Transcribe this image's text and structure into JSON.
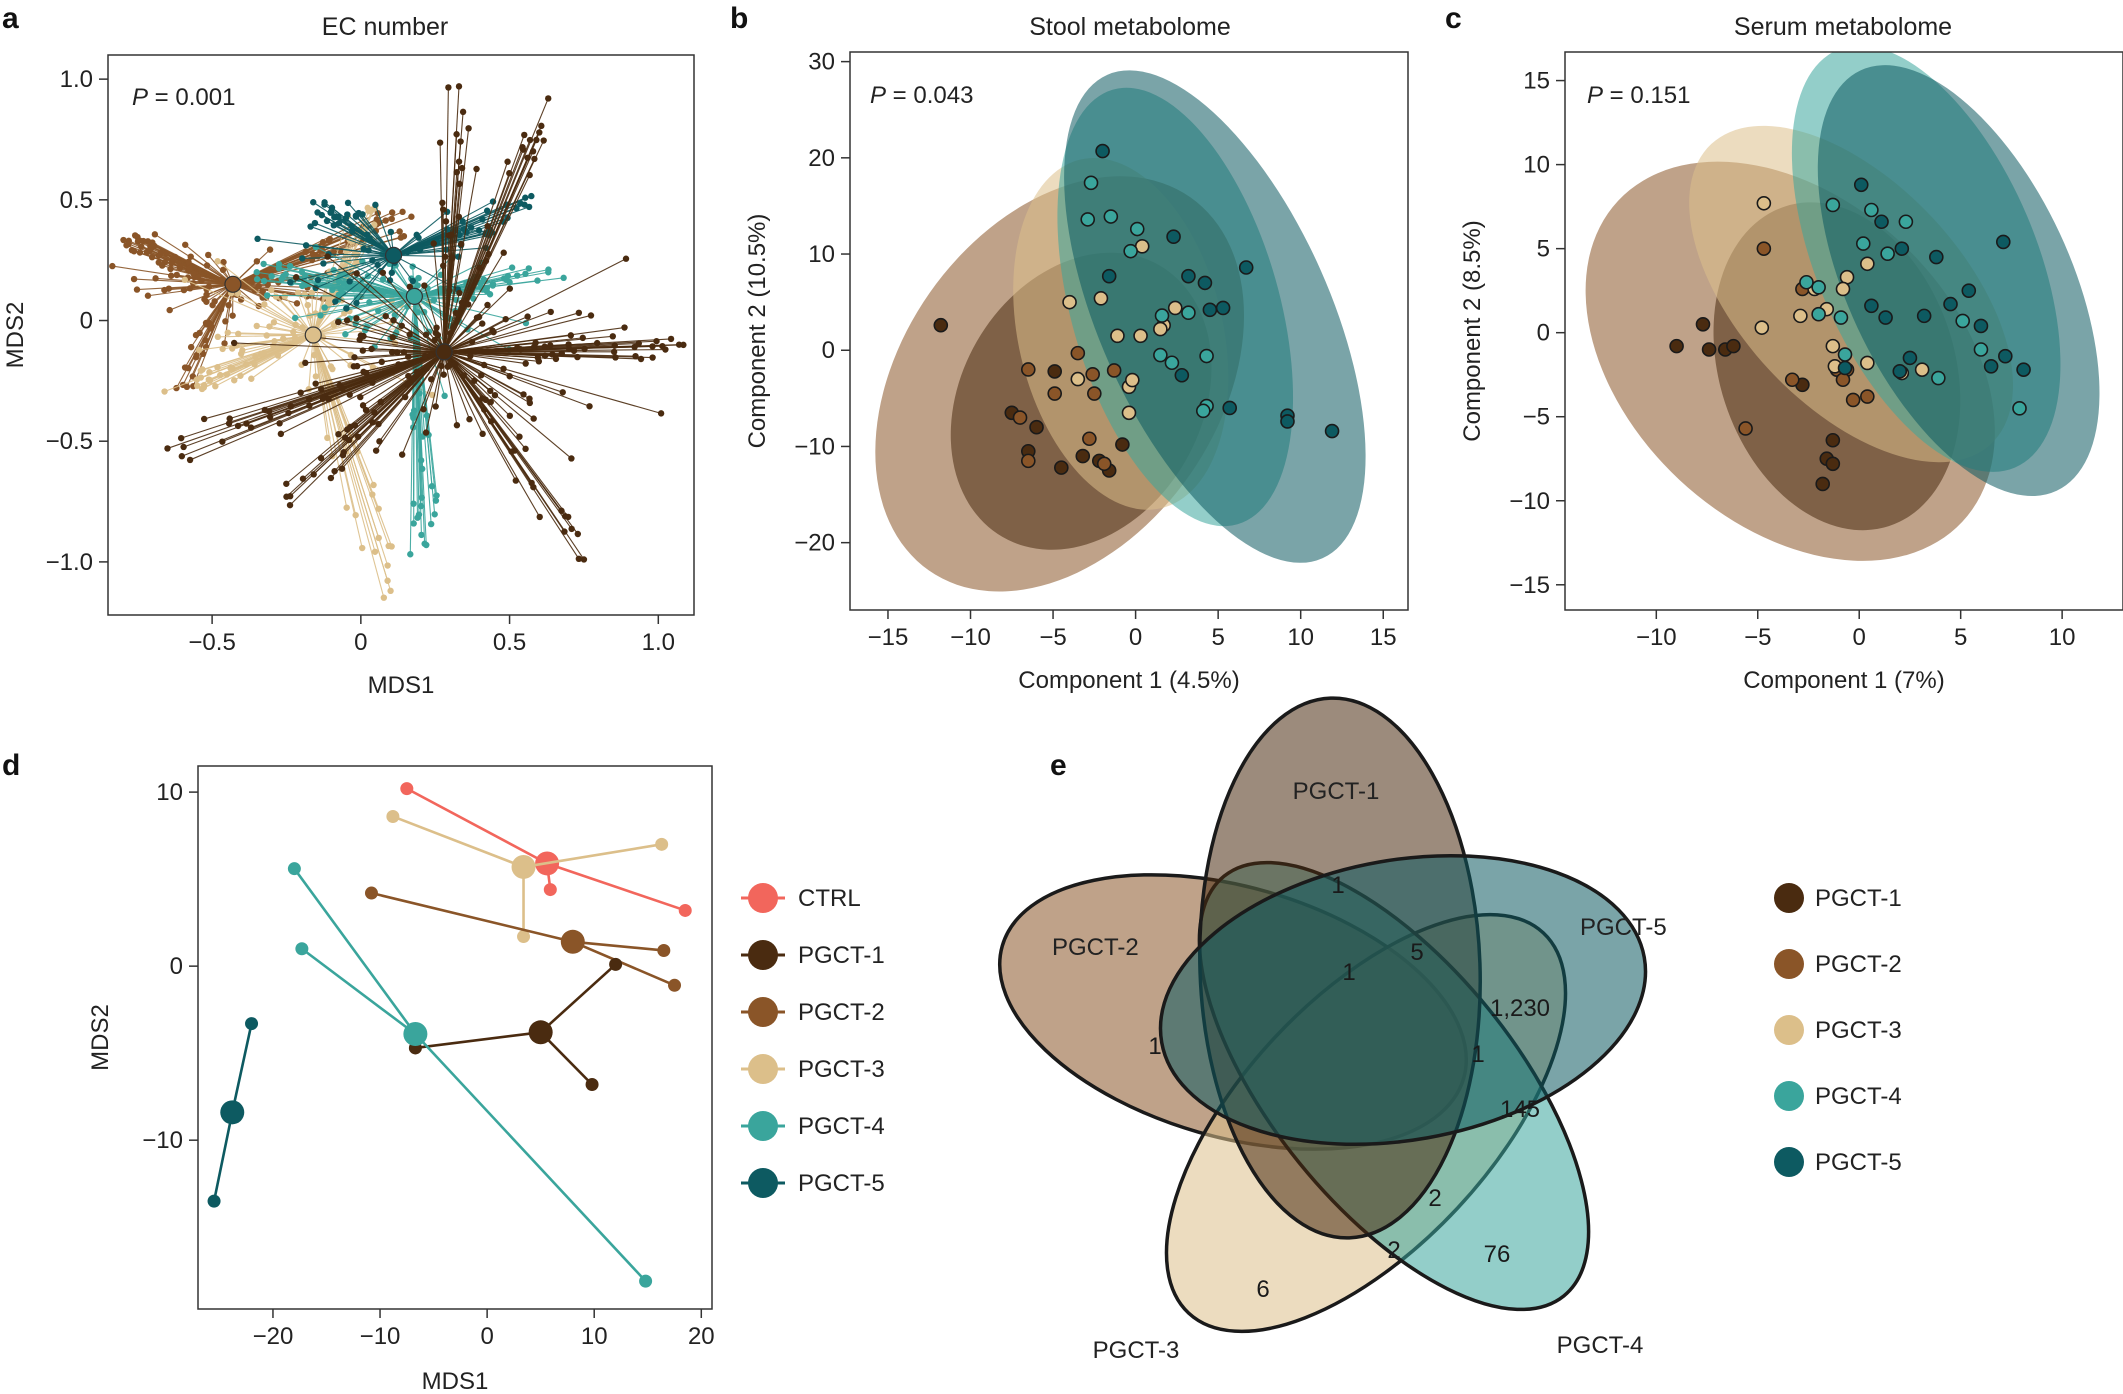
{
  "colors": {
    "CTRL": "#f2665c",
    "PGCT-1": "#4a2b10",
    "PGCT-2": "#8a5528",
    "PGCT-3": "#dcbf8a",
    "PGCT-4": "#3aa59c",
    "PGCT-5": "#0d5a61"
  },
  "panels": {
    "a": {
      "label": "a",
      "title": "EC number",
      "p_italic": "P",
      "p_value": " = 0.001"
    },
    "b": {
      "label": "b",
      "title": "Stool metabolome",
      "p_italic": "P",
      "p_value": " = 0.043"
    },
    "c": {
      "label": "c",
      "title": "Serum metabolome",
      "p_italic": "P",
      "p_value": " = 0.151"
    },
    "d": {
      "label": "d"
    },
    "e": {
      "label": "e"
    }
  },
  "chart_data": [
    {
      "id": "a",
      "type": "scatter",
      "title": "EC number",
      "xlabel": "MDS1",
      "ylabel": "MDS2",
      "xlim": [
        -0.85,
        1.12
      ],
      "ylim": [
        -1.22,
        1.1
      ],
      "xticks": [
        -0.5,
        0,
        0.5,
        1.0
      ],
      "xtick_labels": [
        "−0.5",
        "0",
        "0.5",
        "1.0"
      ],
      "yticks": [
        -1.0,
        -0.5,
        0,
        0.5,
        1.0
      ],
      "ytick_labels": [
        "−1.0",
        "−0.5",
        "0",
        "0.5",
        "1.0"
      ],
      "annotation": "P = 0.001",
      "groups": [
        {
          "name": "PGCT-2",
          "centroid": [
            -0.43,
            0.15
          ],
          "n": 160,
          "spread": [
            0.18,
            0.07
          ],
          "extent": [
            [
              -0.78,
              0.33
            ],
            [
              -0.62,
              -0.28
            ],
            [
              0.17,
              0.43
            ]
          ]
        },
        {
          "name": "PGCT-3",
          "centroid": [
            -0.16,
            -0.06
          ],
          "n": 130,
          "spread": [
            0.2,
            0.12
          ],
          "extent": [
            [
              0.1,
              -1.12
            ],
            [
              -0.55,
              -0.27
            ],
            [
              0.04,
              0.46
            ]
          ]
        },
        {
          "name": "PGCT-4",
          "centroid": [
            0.18,
            0.1
          ],
          "n": 150,
          "spread": [
            0.22,
            0.12
          ],
          "extent": [
            [
              0.22,
              -0.93
            ],
            [
              0.63,
              0.2
            ],
            [
              -0.35,
              0.2
            ]
          ]
        },
        {
          "name": "PGCT-5",
          "centroid": [
            0.11,
            0.27
          ],
          "n": 90,
          "spread": [
            0.2,
            0.12
          ],
          "extent": [
            [
              0.55,
              0.48
            ],
            [
              -0.16,
              0.49
            ]
          ]
        },
        {
          "name": "PGCT-1",
          "centroid": [
            0.28,
            -0.13
          ],
          "n": 260,
          "spread": [
            0.28,
            0.2
          ],
          "extent": [
            [
              0.33,
              0.97
            ],
            [
              0.63,
              0.92
            ],
            [
              1.07,
              -0.1
            ],
            [
              0.75,
              -0.99
            ],
            [
              -0.25,
              -0.73
            ],
            [
              -0.65,
              -0.53
            ]
          ]
        }
      ]
    },
    {
      "id": "b",
      "type": "scatter",
      "title": "Stool metabolome",
      "xlabel": "Component 1 (4.5%)",
      "ylabel": "Component 2 (10.5%)",
      "xlim": [
        -17.3,
        16.5
      ],
      "ylim": [
        -27,
        31
      ],
      "xticks": [
        -15,
        -10,
        -5,
        0,
        5,
        10,
        15
      ],
      "xtick_labels": [
        "−15",
        "−10",
        "−5",
        "0",
        "5",
        "10",
        "15"
      ],
      "yticks": [
        -20,
        -10,
        0,
        10,
        20,
        30
      ],
      "ytick_labels": [
        "−20",
        "−10",
        "0",
        "10",
        "20",
        "30"
      ],
      "annotation": "P = 0.043",
      "ellipses": [
        {
          "group": "PGCT-2",
          "cx": -4.6,
          "cy": -3.5,
          "rx": 13.8,
          "ry": 16.5,
          "angle": -55
        },
        {
          "group": "PGCT-1",
          "cx": -3.3,
          "cy": -5.3,
          "rx": 9.5,
          "ry": 12.5,
          "angle": -60
        },
        {
          "group": "PGCT-3",
          "cx": -0.9,
          "cy": 1.7,
          "rx": 6.2,
          "ry": 18.6,
          "angle": -13
        },
        {
          "group": "PGCT-4",
          "cx": 2.4,
          "cy": 4.5,
          "rx": 6.3,
          "ry": 23.5,
          "angle": -16
        },
        {
          "group": "PGCT-5",
          "cx": 4.8,
          "cy": 3.5,
          "rx": 7.0,
          "ry": 27.5,
          "angle": -24
        }
      ],
      "points": {
        "PGCT-1": [
          [
            -11.8,
            2.6
          ],
          [
            -7.5,
            -6.5
          ],
          [
            -6.5,
            -10.5
          ],
          [
            -6.0,
            -8.0
          ],
          [
            -4.9,
            -2.2
          ],
          [
            -4.5,
            -12.2
          ],
          [
            -3.2,
            -11.0
          ],
          [
            -2.2,
            -11.5
          ],
          [
            -1.6,
            -12.5
          ],
          [
            -0.8,
            -9.8
          ]
        ],
        "PGCT-2": [
          [
            -7.0,
            -7.0
          ],
          [
            -6.5,
            -11.5
          ],
          [
            -6.5,
            -2.0
          ],
          [
            -4.9,
            -4.5
          ],
          [
            -3.5,
            -0.3
          ],
          [
            -2.8,
            -9.2
          ],
          [
            -2.6,
            -2.5
          ],
          [
            -2.5,
            -4.5
          ],
          [
            -1.9,
            -11.8
          ],
          [
            -1.3,
            -2.1
          ]
        ],
        "PGCT-3": [
          [
            -2.1,
            5.4
          ],
          [
            -1.1,
            1.5
          ],
          [
            -0.4,
            -3.8
          ],
          [
            0.3,
            1.5
          ],
          [
            -0.2,
            -3.1
          ],
          [
            1.7,
            2.6
          ],
          [
            2.4,
            4.4
          ],
          [
            1.5,
            2.2
          ],
          [
            0.4,
            10.8
          ],
          [
            -0.4,
            -6.5
          ],
          [
            -4.0,
            5.0
          ],
          [
            -3.5,
            -3.0
          ]
        ],
        "PGCT-4": [
          [
            -2.7,
            17.4
          ],
          [
            -2.9,
            13.6
          ],
          [
            -1.5,
            13.9
          ],
          [
            -0.3,
            10.3
          ],
          [
            0.1,
            12.6
          ],
          [
            1.6,
            3.6
          ],
          [
            2.2,
            -1.3
          ],
          [
            4.3,
            -0.6
          ],
          [
            4.3,
            -5.8
          ],
          [
            4.1,
            -6.3
          ],
          [
            3.2,
            3.9
          ],
          [
            1.5,
            -0.5
          ]
        ],
        "PGCT-5": [
          [
            -2.0,
            20.7
          ],
          [
            -1.6,
            7.7
          ],
          [
            2.3,
            11.8
          ],
          [
            2.8,
            -2.6
          ],
          [
            3.2,
            7.7
          ],
          [
            4.5,
            4.2
          ],
          [
            5.3,
            4.4
          ],
          [
            5.7,
            -6.0
          ],
          [
            6.7,
            8.6
          ],
          [
            9.2,
            -6.8
          ],
          [
            9.2,
            -7.4
          ],
          [
            11.9,
            -8.4
          ],
          [
            4.2,
            7.0
          ]
        ]
      }
    },
    {
      "id": "c",
      "type": "scatter",
      "title": "Serum metabolome",
      "xlabel": "Component 1 (7%)",
      "ylabel": "Component 2 (8.5%)",
      "xlim": [
        -14.5,
        13
      ],
      "ylim": [
        -16.5,
        16.7
      ],
      "xticks": [
        -10,
        -5,
        0,
        5,
        10
      ],
      "xtick_labels": [
        "−10",
        "−5",
        "0",
        "5",
        "10"
      ],
      "yticks": [
        -15,
        -10,
        -5,
        0,
        5,
        10,
        15
      ],
      "ytick_labels": [
        "−15",
        "−10",
        "−5",
        "0",
        "5",
        "10",
        "15"
      ],
      "annotation": "P = 0.151",
      "ellipses": [
        {
          "group": "PGCT-2",
          "cx": -3.4,
          "cy": -1.7,
          "rx": 8.0,
          "ry": 14.0,
          "angle": -47
        },
        {
          "group": "PGCT-1",
          "cx": -1.1,
          "cy": -2.0,
          "rx": 5.8,
          "ry": 10.0,
          "angle": -18
        },
        {
          "group": "PGCT-3",
          "cx": -0.4,
          "cy": 2.3,
          "rx": 5.5,
          "ry": 12.2,
          "angle": -43
        },
        {
          "group": "PGCT-4",
          "cx": 3.3,
          "cy": 4.4,
          "rx": 5.4,
          "ry": 13.5,
          "angle": -23
        },
        {
          "group": "PGCT-5",
          "cx": 4.9,
          "cy": 3.1,
          "rx": 5.5,
          "ry": 13.8,
          "angle": -25
        }
      ],
      "points": {
        "PGCT-1": [
          [
            -9.0,
            -0.8
          ],
          [
            -7.7,
            0.5
          ],
          [
            -7.4,
            -1.0
          ],
          [
            -6.6,
            -1.0
          ],
          [
            -6.2,
            -0.8
          ],
          [
            -2.8,
            -3.1
          ],
          [
            -1.6,
            -7.5
          ],
          [
            -1.3,
            -7.8
          ],
          [
            -1.3,
            -6.4
          ],
          [
            -1.8,
            -9.0
          ]
        ],
        "PGCT-2": [
          [
            -5.6,
            -5.7
          ],
          [
            -4.7,
            5.0
          ],
          [
            -3.3,
            -2.8
          ],
          [
            -2.8,
            2.6
          ],
          [
            -1.1,
            -2.2
          ],
          [
            -0.6,
            -2.2
          ],
          [
            -0.3,
            -4.0
          ],
          [
            -0.8,
            -2.8
          ],
          [
            0.4,
            -3.8
          ]
        ],
        "PGCT-3": [
          [
            -4.7,
            7.7
          ],
          [
            -4.8,
            0.3
          ],
          [
            -2.9,
            1.0
          ],
          [
            -2.2,
            2.6
          ],
          [
            -1.6,
            1.4
          ],
          [
            -1.3,
            -0.8
          ],
          [
            -0.6,
            3.3
          ],
          [
            -1.2,
            -2.0
          ],
          [
            0.4,
            -1.8
          ],
          [
            -0.8,
            2.6
          ],
          [
            0.4,
            4.1
          ],
          [
            2.1,
            -2.4
          ],
          [
            3.1,
            -2.2
          ]
        ],
        "PGCT-4": [
          [
            -2.0,
            1.1
          ],
          [
            -2.0,
            2.7
          ],
          [
            -2.6,
            3.0
          ],
          [
            -1.3,
            7.6
          ],
          [
            -0.7,
            -1.3
          ],
          [
            -0.9,
            0.9
          ],
          [
            0.2,
            5.3
          ],
          [
            0.6,
            7.3
          ],
          [
            2.3,
            6.6
          ],
          [
            1.4,
            4.7
          ],
          [
            3.9,
            -2.7
          ],
          [
            6.0,
            -1.0
          ],
          [
            7.9,
            -4.5
          ],
          [
            5.1,
            0.7
          ]
        ],
        "PGCT-5": [
          [
            -0.7,
            -2.1
          ],
          [
            0.1,
            8.8
          ],
          [
            0.6,
            1.6
          ],
          [
            1.1,
            6.6
          ],
          [
            1.3,
            0.9
          ],
          [
            2.0,
            -2.3
          ],
          [
            2.5,
            -1.5
          ],
          [
            2.1,
            5.0
          ],
          [
            3.8,
            4.5
          ],
          [
            4.5,
            1.7
          ],
          [
            5.4,
            2.5
          ],
          [
            6.0,
            0.4
          ],
          [
            6.5,
            -2.0
          ],
          [
            7.2,
            -1.4
          ],
          [
            7.1,
            5.4
          ],
          [
            8.1,
            -2.2
          ],
          [
            3.2,
            1.0
          ]
        ]
      }
    },
    {
      "id": "d",
      "type": "scatter",
      "xlabel": "MDS1",
      "ylabel": "MDS2",
      "xlim": [
        -27,
        21
      ],
      "ylim": [
        -19.7,
        11.5
      ],
      "xticks": [
        -20,
        -10,
        0,
        10,
        20
      ],
      "xtick_labels": [
        "−20",
        "−10",
        "0",
        "10",
        "20"
      ],
      "yticks": [
        -10,
        0,
        10
      ],
      "ytick_labels": [
        "−10",
        "0",
        "10"
      ],
      "groups": [
        {
          "name": "CTRL",
          "centroid": [
            5.6,
            5.9
          ],
          "points": [
            [
              -7.5,
              10.2
            ],
            [
              18.5,
              3.2
            ],
            [
              5.9,
              4.4
            ]
          ]
        },
        {
          "name": "PGCT-3",
          "centroid": [
            3.4,
            5.7
          ],
          "points": [
            [
              -8.8,
              8.6
            ],
            [
              16.3,
              7.0
            ],
            [
              3.4,
              1.7
            ]
          ]
        },
        {
          "name": "PGCT-2",
          "centroid": [
            8.0,
            1.4
          ],
          "points": [
            [
              -10.8,
              4.2
            ],
            [
              16.5,
              0.9
            ],
            [
              17.5,
              -1.1
            ]
          ]
        },
        {
          "name": "PGCT-1",
          "centroid": [
            5.0,
            -3.8
          ],
          "points": [
            [
              -6.7,
              -4.7
            ],
            [
              12.0,
              0.1
            ],
            [
              9.8,
              -6.8
            ]
          ]
        },
        {
          "name": "PGCT-4",
          "centroid": [
            -6.7,
            -3.9
          ],
          "points": [
            [
              -18.0,
              5.6
            ],
            [
              -17.3,
              1.0
            ],
            [
              14.8,
              -18.1
            ]
          ]
        },
        {
          "name": "PGCT-5",
          "centroid": [
            -23.8,
            -8.4
          ],
          "points": [
            [
              -25.5,
              -13.5
            ],
            [
              -22.0,
              -3.3
            ]
          ]
        }
      ],
      "legend": [
        "CTRL",
        "PGCT-1",
        "PGCT-2",
        "PGCT-3",
        "PGCT-4",
        "PGCT-5"
      ]
    },
    {
      "id": "e",
      "type": "venn",
      "sets": [
        "PGCT-1",
        "PGCT-2",
        "PGCT-3",
        "PGCT-4",
        "PGCT-5"
      ],
      "region_counts": [
        "1",
        "1",
        "5",
        "1,230",
        "1",
        "1",
        "145",
        "2",
        "2",
        "76",
        "6"
      ],
      "legend": [
        "PGCT-1",
        "PGCT-2",
        "PGCT-3",
        "PGCT-4",
        "PGCT-5"
      ]
    }
  ]
}
